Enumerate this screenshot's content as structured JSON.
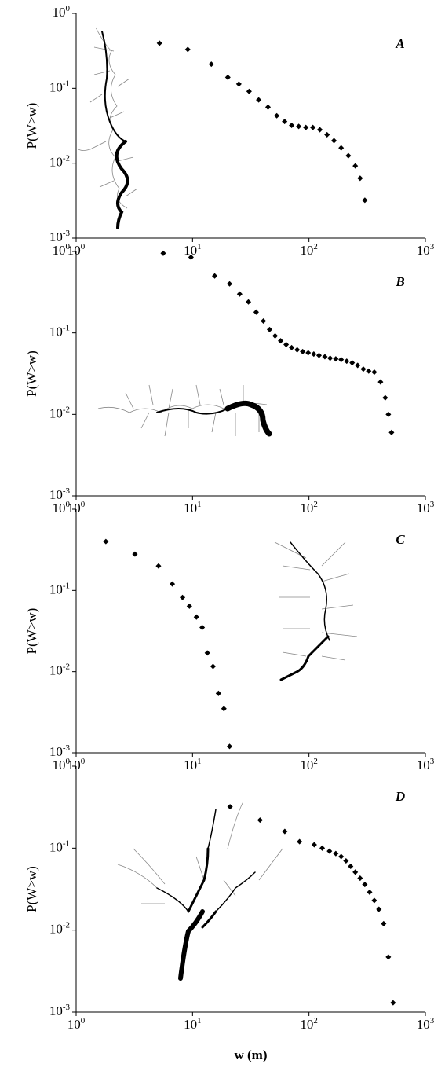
{
  "chart_data": [
    {
      "type": "scatter",
      "annotation": "A",
      "ylabel": "P(W>w)",
      "color": "#000000",
      "xscale": "log",
      "yscale": "log",
      "xlim": [
        1,
        1000
      ],
      "ylim": [
        0.001,
        1
      ],
      "xticks": [
        {
          "value": 1,
          "label": "10^0"
        },
        {
          "value": 10,
          "label": "10^1"
        },
        {
          "value": 100,
          "label": "10^2"
        },
        {
          "value": 1000,
          "label": "10^3"
        }
      ],
      "yticks": [
        {
          "value": 0.001,
          "label": "10^-3"
        },
        {
          "value": 0.01,
          "label": "10^-2"
        },
        {
          "value": 0.1,
          "label": "10^-1"
        },
        {
          "value": 1,
          "label": "10^0"
        }
      ],
      "x": [
        5.2,
        9.1,
        14.5,
        20.1,
        25,
        30.6,
        37,
        44.5,
        52.9,
        61.8,
        71,
        81.7,
        94,
        108,
        124,
        143,
        164,
        189,
        218,
        250,
        275,
        302
      ],
      "values": [
        0.4,
        0.33,
        0.21,
        0.14,
        0.114,
        0.091,
        0.07,
        0.056,
        0.043,
        0.036,
        0.032,
        0.031,
        0.03,
        0.03,
        0.028,
        0.024,
        0.02,
        0.016,
        0.0126,
        0.0092,
        0.0063,
        0.0032
      ]
    },
    {
      "type": "scatter",
      "annotation": "B",
      "ylabel": "P(W>w)",
      "color": "#000000",
      "xscale": "log",
      "yscale": "log",
      "xlim": [
        1,
        1000
      ],
      "ylim": [
        0.001,
        1
      ],
      "xticks": [
        {
          "value": 1,
          "label": "10^0"
        },
        {
          "value": 10,
          "label": "10^1"
        },
        {
          "value": 100,
          "label": "10^2"
        },
        {
          "value": 1000,
          "label": "10^3"
        }
      ],
      "yticks": [
        {
          "value": 0.001,
          "label": "10^-3"
        },
        {
          "value": 0.01,
          "label": "10^-2"
        },
        {
          "value": 0.1,
          "label": "10^-1"
        },
        {
          "value": 1,
          "label": "10^0"
        }
      ],
      "x": [
        5.6,
        9.7,
        15.5,
        20.8,
        25.4,
        30.2,
        35.2,
        40.6,
        45.9,
        51.2,
        57.1,
        63.7,
        71,
        79.2,
        88.3,
        98.5,
        110,
        122,
        137,
        152,
        170,
        189,
        211,
        235,
        262,
        293,
        326,
        364,
        412,
        452,
        481,
        512
      ],
      "values": [
        0.95,
        0.85,
        0.5,
        0.4,
        0.3,
        0.24,
        0.18,
        0.14,
        0.11,
        0.092,
        0.08,
        0.072,
        0.066,
        0.062,
        0.059,
        0.057,
        0.055,
        0.053,
        0.051,
        0.049,
        0.048,
        0.047,
        0.045,
        0.043,
        0.04,
        0.036,
        0.034,
        0.033,
        0.025,
        0.016,
        0.01,
        0.006
      ]
    },
    {
      "type": "scatter",
      "annotation": "C",
      "ylabel": "P(W>w)",
      "color": "#000000",
      "xscale": "log",
      "yscale": "log",
      "xlim": [
        1,
        1000
      ],
      "ylim": [
        0.001,
        1
      ],
      "xticks": [
        {
          "value": 1,
          "label": "10^0"
        },
        {
          "value": 10,
          "label": "10^1"
        },
        {
          "value": 100,
          "label": "10^2"
        },
        {
          "value": 1000,
          "label": "10^3"
        }
      ],
      "yticks": [
        {
          "value": 0.001,
          "label": "10^-3"
        },
        {
          "value": 0.01,
          "label": "10^-2"
        },
        {
          "value": 0.1,
          "label": "10^-1"
        },
        {
          "value": 1,
          "label": "10^0"
        }
      ],
      "x": [
        1.8,
        3.2,
        5.1,
        6.7,
        8.2,
        9.4,
        10.8,
        12.1,
        13.4,
        15,
        16.7,
        18.6,
        20.8
      ],
      "values": [
        0.4,
        0.28,
        0.2,
        0.12,
        0.082,
        0.064,
        0.047,
        0.035,
        0.017,
        0.0116,
        0.0054,
        0.0035,
        0.0012
      ]
    },
    {
      "type": "scatter",
      "annotation": "D",
      "ylabel": "P(W>w)",
      "xlabel": "w (m)",
      "color": "#000000",
      "xscale": "log",
      "yscale": "log",
      "xlim": [
        1,
        1000
      ],
      "ylim": [
        0.001,
        1
      ],
      "xticks": [
        {
          "value": 1,
          "label": "10^0"
        },
        {
          "value": 10,
          "label": "10^1"
        },
        {
          "value": 100,
          "label": "10^2"
        },
        {
          "value": 1000,
          "label": "10^3"
        }
      ],
      "yticks": [
        {
          "value": 0.001,
          "label": "10^-3"
        },
        {
          "value": 0.01,
          "label": "10^-2"
        },
        {
          "value": 0.1,
          "label": "10^-1"
        },
        {
          "value": 1,
          "label": "10^0"
        }
      ],
      "x": [
        21,
        38,
        62,
        83,
        111,
        130,
        150,
        170,
        189,
        208,
        228,
        250,
        275,
        302,
        332,
        364,
        399,
        438,
        481,
        528
      ],
      "values": [
        0.32,
        0.22,
        0.16,
        0.12,
        0.11,
        0.1,
        0.092,
        0.086,
        0.079,
        0.07,
        0.06,
        0.051,
        0.043,
        0.036,
        0.029,
        0.023,
        0.018,
        0.012,
        0.0047,
        0.0013
      ]
    }
  ]
}
